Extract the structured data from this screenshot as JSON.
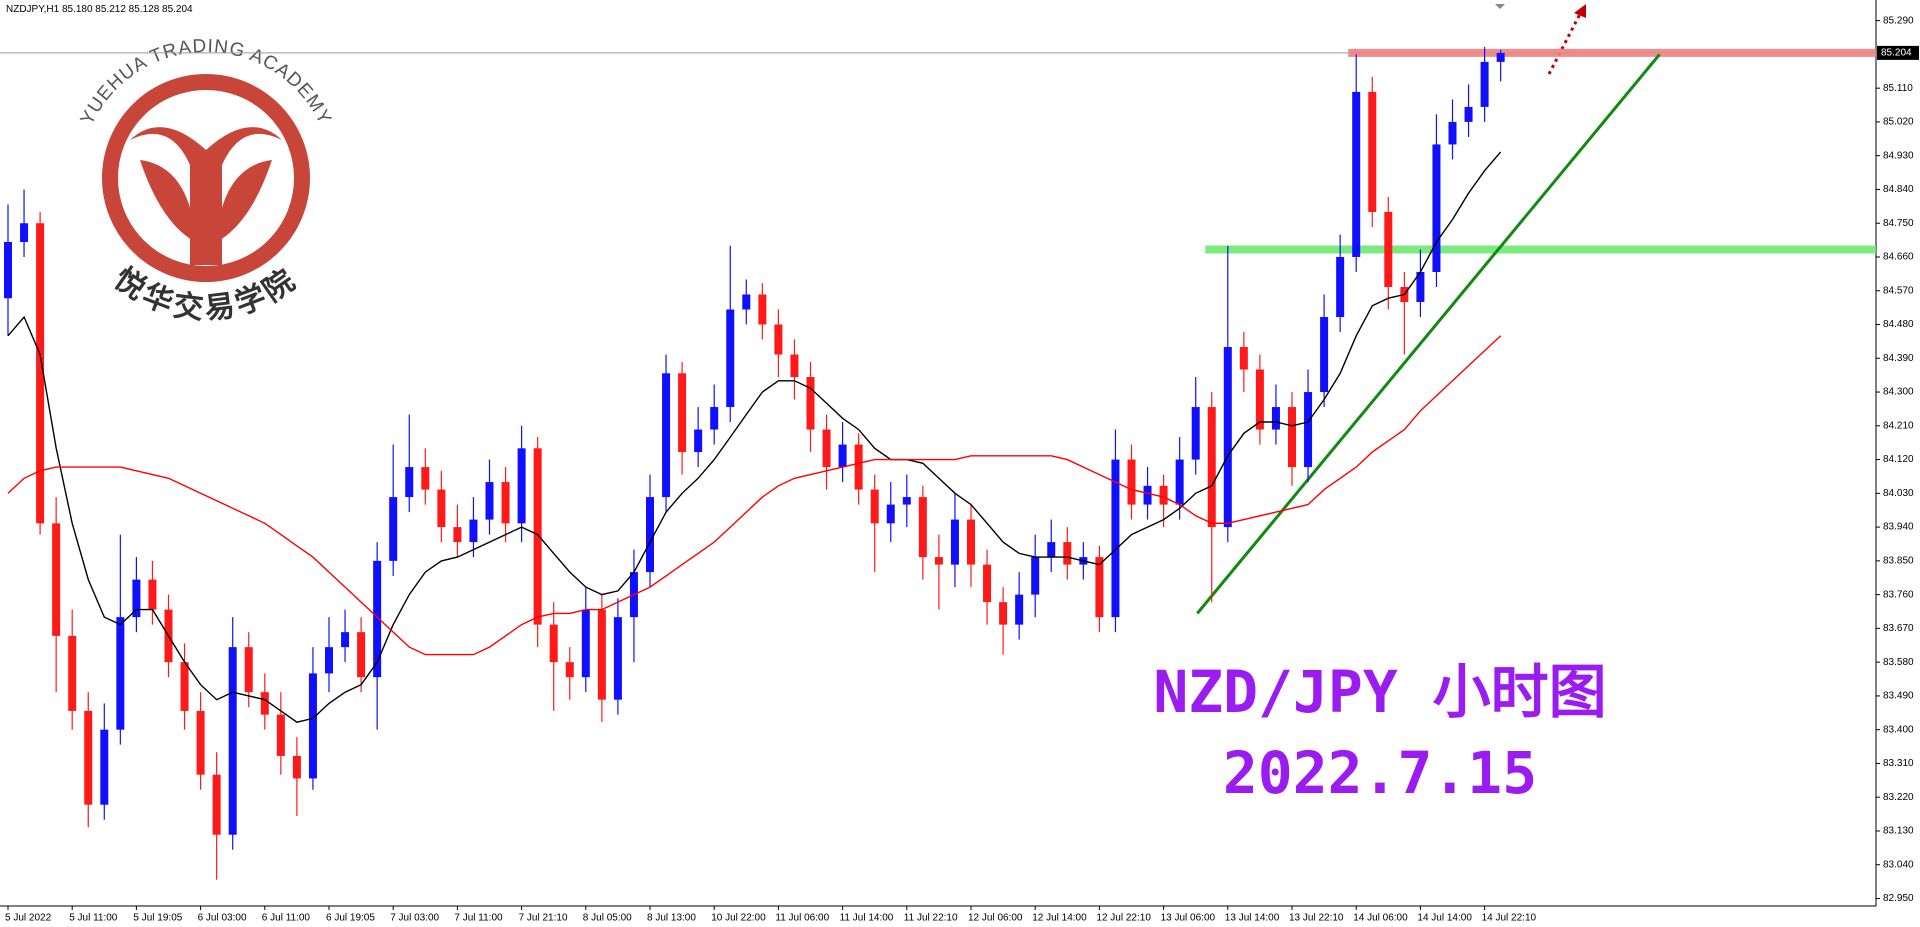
{
  "chart_data": {
    "type": "candlestick",
    "title": "NZDJPY,H1 85.180 85.212 85.128 85.204",
    "categories": [
      "5 Jul 2022",
      null,
      null,
      null,
      "5 Jul 11:00",
      null,
      null,
      null,
      "5 Jul 19:05",
      null,
      null,
      null,
      "6 Jul 03:00",
      null,
      null,
      null,
      "6 Jul 11:00",
      null,
      null,
      null,
      "6 Jul 19:05",
      null,
      null,
      null,
      "7 Jul 03:00",
      null,
      null,
      null,
      "7 Jul 11:00",
      null,
      null,
      null,
      "7 Jul 21:10",
      null,
      null,
      null,
      "8 Jul 05:00",
      null,
      null,
      null,
      "8 Jul 13:00",
      null,
      null,
      null,
      "10 Jul 22:00",
      null,
      null,
      null,
      "11 Jul 06:00",
      null,
      null,
      null,
      "11 Jul 14:00",
      null,
      null,
      null,
      "11 Jul 22:10",
      null,
      null,
      null,
      "12 Jul 06:00",
      null,
      null,
      null,
      "12 Jul 14:00",
      null,
      null,
      null,
      "12 Jul 22:10",
      null,
      null,
      null,
      "13 Jul 06:00",
      null,
      null,
      null,
      "13 Jul 14:00",
      null,
      null,
      null,
      "13 Jul 22:10",
      null,
      null,
      null,
      "14 Jul 06:00",
      null,
      null,
      null,
      "14 Jul 14:00",
      null,
      null,
      null,
      "14 Jul 22:10",
      null
    ],
    "open": [
      84.55,
      84.7,
      84.75,
      83.95,
      83.65,
      83.45,
      83.2,
      83.4,
      83.7,
      83.8,
      83.72,
      83.58,
      83.45,
      83.28,
      83.12,
      83.62,
      83.5,
      83.44,
      83.33,
      83.27,
      83.55,
      83.62,
      83.66,
      83.54,
      83.85,
      84.02,
      84.1,
      84.04,
      83.94,
      83.9,
      83.96,
      84.06,
      83.95,
      84.15,
      83.68,
      83.58,
      83.54,
      83.72,
      83.48,
      83.7,
      83.82,
      84.02,
      84.35,
      84.14,
      84.2,
      84.26,
      84.52,
      84.56,
      84.48,
      84.4,
      84.34,
      84.2,
      84.1,
      84.16,
      84.04,
      83.95,
      84.0,
      84.02,
      83.86,
      83.84,
      83.96,
      83.84,
      83.74,
      83.68,
      83.76,
      83.86,
      83.9,
      83.84,
      83.86,
      83.7,
      84.12,
      84.0,
      84.05,
      84.0,
      84.12,
      84.26,
      83.94,
      84.42,
      84.36,
      84.2,
      84.26,
      84.1,
      84.3,
      84.5,
      84.66,
      85.1,
      84.78,
      84.58,
      84.54,
      84.62,
      84.96,
      85.02,
      85.06,
      85.18
    ],
    "high": [
      84.8,
      84.84,
      84.78,
      84.02,
      83.72,
      83.5,
      83.47,
      83.92,
      83.86,
      83.85,
      83.76,
      83.63,
      83.5,
      83.34,
      83.7,
      83.66,
      83.55,
      83.5,
      83.38,
      83.62,
      83.7,
      83.72,
      83.7,
      83.9,
      84.16,
      84.24,
      84.15,
      84.09,
      84.0,
      84.02,
      84.12,
      84.1,
      84.21,
      84.18,
      83.74,
      83.62,
      83.78,
      83.76,
      83.75,
      83.88,
      84.08,
      84.4,
      84.38,
      84.26,
      84.32,
      84.69,
      84.6,
      84.59,
      84.52,
      84.44,
      84.38,
      84.24,
      84.22,
      84.19,
      84.08,
      84.06,
      84.08,
      84.05,
      83.92,
      84.03,
      84.0,
      83.88,
      83.78,
      83.82,
      83.92,
      83.96,
      83.94,
      83.9,
      83.89,
      84.2,
      84.16,
      84.1,
      84.08,
      84.18,
      84.34,
      84.3,
      84.69,
      84.46,
      84.4,
      84.32,
      84.3,
      84.36,
      84.56,
      84.72,
      85.2,
      85.14,
      84.82,
      84.62,
      84.68,
      85.04,
      85.08,
      85.12,
      85.22,
      85.212
    ],
    "low": [
      84.45,
      84.66,
      83.92,
      83.5,
      83.4,
      83.14,
      83.16,
      83.36,
      83.66,
      83.68,
      83.54,
      83.4,
      83.24,
      83.0,
      83.08,
      83.46,
      83.4,
      83.28,
      83.17,
      83.24,
      83.5,
      83.58,
      83.5,
      83.4,
      83.81,
      83.98,
      84.0,
      83.9,
      83.86,
      83.86,
      83.92,
      83.9,
      83.9,
      83.62,
      83.45,
      83.48,
      83.5,
      83.42,
      83.44,
      83.58,
      83.78,
      83.98,
      84.08,
      84.1,
      84.16,
      84.22,
      84.48,
      84.44,
      84.34,
      84.28,
      84.14,
      84.04,
      84.06,
      84.0,
      83.82,
      83.9,
      83.94,
      83.8,
      83.72,
      83.78,
      83.78,
      83.68,
      83.6,
      83.64,
      83.7,
      83.82,
      83.8,
      83.8,
      83.66,
      83.66,
      83.96,
      83.96,
      83.94,
      83.96,
      84.08,
      83.74,
      83.9,
      84.3,
      84.16,
      84.16,
      84.05,
      84.06,
      84.26,
      84.46,
      84.62,
      84.74,
      84.52,
      84.4,
      84.5,
      84.58,
      84.92,
      84.98,
      85.02,
      85.128
    ],
    "close": [
      84.7,
      84.75,
      83.95,
      83.65,
      83.45,
      83.2,
      83.4,
      83.7,
      83.8,
      83.72,
      83.58,
      83.45,
      83.28,
      83.12,
      83.62,
      83.5,
      83.44,
      83.33,
      83.27,
      83.55,
      83.62,
      83.66,
      83.54,
      83.85,
      84.02,
      84.1,
      84.04,
      83.94,
      83.9,
      83.96,
      84.06,
      83.95,
      84.15,
      83.68,
      83.58,
      83.54,
      83.72,
      83.48,
      83.7,
      83.82,
      84.02,
      84.35,
      84.14,
      84.2,
      84.26,
      84.52,
      84.56,
      84.48,
      84.4,
      84.34,
      84.2,
      84.1,
      84.16,
      84.04,
      83.95,
      84.0,
      84.02,
      83.86,
      83.84,
      83.96,
      83.84,
      83.74,
      83.68,
      83.76,
      83.86,
      83.9,
      83.84,
      83.86,
      83.7,
      84.12,
      84.0,
      84.05,
      84.0,
      84.12,
      84.26,
      83.94,
      84.42,
      84.36,
      84.2,
      84.26,
      84.1,
      84.3,
      84.5,
      84.66,
      85.1,
      84.78,
      84.58,
      84.54,
      84.62,
      84.96,
      85.02,
      85.06,
      85.18,
      85.204
    ],
    "up_color": "#1010ff",
    "down_color": "#ff1a1a",
    "lines": [
      {
        "color": "#000000",
        "values": [
          84.45,
          84.5,
          84.4,
          84.15,
          83.95,
          83.8,
          83.7,
          83.68,
          83.72,
          83.72,
          83.65,
          83.58,
          83.52,
          83.48,
          83.5,
          83.49,
          83.48,
          83.45,
          83.42,
          83.43,
          83.47,
          83.5,
          83.52,
          83.58,
          83.68,
          83.76,
          83.82,
          83.85,
          83.86,
          83.88,
          83.9,
          83.92,
          83.94,
          83.92,
          83.87,
          83.82,
          83.78,
          83.76,
          83.77,
          83.82,
          83.9,
          83.98,
          84.03,
          84.07,
          84.12,
          84.18,
          84.24,
          84.3,
          84.33,
          84.33,
          84.31,
          84.27,
          84.23,
          84.2,
          84.15,
          84.12,
          84.12,
          84.11,
          84.07,
          84.03,
          84.0,
          83.95,
          83.9,
          83.87,
          83.86,
          83.86,
          83.86,
          83.85,
          83.84,
          83.88,
          83.92,
          83.94,
          83.96,
          83.99,
          84.03,
          84.05,
          84.13,
          84.19,
          84.22,
          84.22,
          84.21,
          84.22,
          84.28,
          84.35,
          84.45,
          84.53,
          84.55,
          84.56,
          84.62,
          84.7,
          84.76,
          84.83,
          84.89,
          84.94
        ]
      },
      {
        "color": "#ff0000",
        "values": [
          84.03,
          84.07,
          84.09,
          84.1,
          84.1,
          84.1,
          84.1,
          84.1,
          84.09,
          84.08,
          84.07,
          84.05,
          84.03,
          84.01,
          83.99,
          83.97,
          83.95,
          83.92,
          83.89,
          83.86,
          83.82,
          83.78,
          83.74,
          83.7,
          83.66,
          83.62,
          83.6,
          83.6,
          83.6,
          83.6,
          83.62,
          83.65,
          83.68,
          83.7,
          83.71,
          83.71,
          83.72,
          83.72,
          83.74,
          83.76,
          83.78,
          83.81,
          83.84,
          83.87,
          83.9,
          83.94,
          83.98,
          84.02,
          84.05,
          84.07,
          84.08,
          84.09,
          84.1,
          84.11,
          84.12,
          84.12,
          84.12,
          84.12,
          84.12,
          84.12,
          84.13,
          84.13,
          84.13,
          84.13,
          84.13,
          84.13,
          84.12,
          84.1,
          84.08,
          84.06,
          84.04,
          84.03,
          84.02,
          84.0,
          83.97,
          83.95,
          83.95,
          83.96,
          83.97,
          83.98,
          83.99,
          84.0,
          84.04,
          84.07,
          84.1,
          84.14,
          84.17,
          84.2,
          84.25,
          84.29,
          84.33,
          84.37,
          84.41,
          84.45
        ]
      }
    ],
    "ylim": [
      82.93,
      85.345
    ],
    "yticks": [
      {
        "value": 82.95,
        "label": "82.950"
      },
      {
        "value": 83.04,
        "label": "83.040"
      },
      {
        "value": 83.13,
        "label": "83.130"
      },
      {
        "value": 83.22,
        "label": "83.220"
      },
      {
        "value": 83.31,
        "label": "83.310"
      },
      {
        "value": 83.4,
        "label": "83.400"
      },
      {
        "value": 83.49,
        "label": "83.490"
      },
      {
        "value": 83.58,
        "label": "83.580"
      },
      {
        "value": 83.67,
        "label": "83.670"
      },
      {
        "value": 83.76,
        "label": "83.760"
      },
      {
        "value": 83.85,
        "label": "83.850"
      },
      {
        "value": 83.94,
        "label": "83.940"
      },
      {
        "value": 84.03,
        "label": "84.030"
      },
      {
        "value": 84.12,
        "label": "84.120"
      },
      {
        "value": 84.21,
        "label": "84.210"
      },
      {
        "value": 84.3,
        "label": "84.300"
      },
      {
        "value": 84.39,
        "label": "84.390"
      },
      {
        "value": 84.48,
        "label": "84.480"
      },
      {
        "value": 84.57,
        "label": "84.570"
      },
      {
        "value": 84.66,
        "label": "84.660"
      },
      {
        "value": 84.75,
        "label": "84.750"
      },
      {
        "value": 84.84,
        "label": "84.840"
      },
      {
        "value": 84.93,
        "label": "84.930"
      },
      {
        "value": 85.02,
        "label": "85.020"
      },
      {
        "value": 85.11,
        "label": "85.110"
      },
      {
        "value": 85.29,
        "label": "85.290"
      }
    ],
    "current_price": 85.204,
    "levels": [
      {
        "value": 85.204,
        "from": 83.5,
        "color": "#f08080"
      },
      {
        "value": 84.68,
        "from": 74.6,
        "color": "#6ee86e"
      }
    ],
    "trendline": {
      "x": [
        74.1,
        102.9
      ],
      "y": [
        83.71,
        85.2
      ],
      "color": "#128a12"
    }
  },
  "logo": {
    "arc_text": "YUEHUA TRADING ACADEMY",
    "name": "悦华交易学院"
  },
  "watermark": {
    "line1": "NZD/JPY 小时图",
    "line2": "2022.7.15"
  }
}
